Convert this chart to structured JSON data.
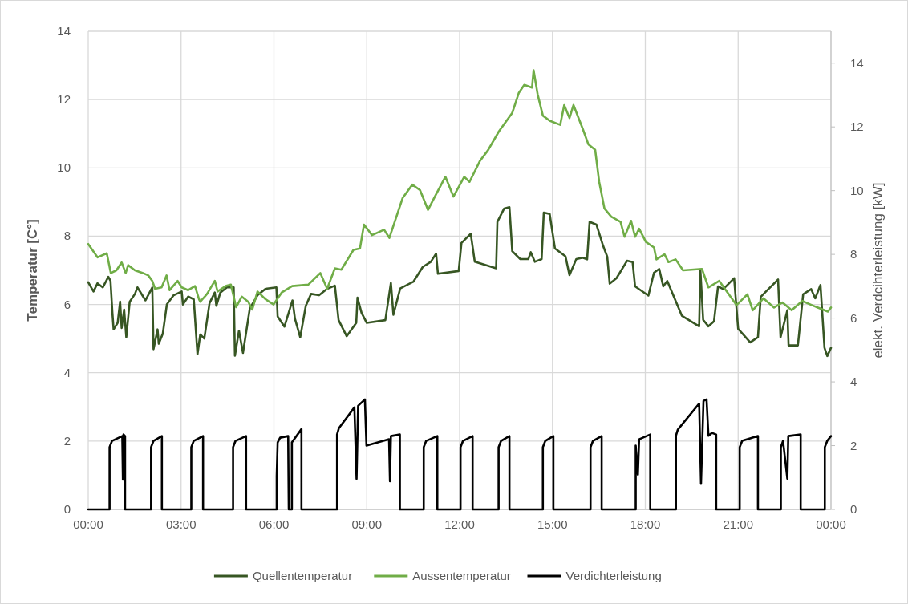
{
  "chart_data": {
    "type": "line",
    "ylabel": "Temperatur [C°]",
    "y2label": "elekt. Verdcihterleistung [kW]",
    "xlim": [
      0,
      24
    ],
    "xticks": [
      {
        "value": 0,
        "label": "00:00"
      },
      {
        "value": 3,
        "label": "03:00"
      },
      {
        "value": 6,
        "label": "06:00"
      },
      {
        "value": 9,
        "label": "09:00"
      },
      {
        "value": 12,
        "label": "12:00"
      },
      {
        "value": 15,
        "label": "15:00"
      },
      {
        "value": 18,
        "label": "18:00"
      },
      {
        "value": 21,
        "label": "21:00"
      },
      {
        "value": 24,
        "label": "00:00"
      }
    ],
    "ylim": [
      0,
      14
    ],
    "yticks": [
      0,
      2,
      4,
      6,
      8,
      10,
      12,
      14
    ],
    "y2lim": [
      0,
      15
    ],
    "y2ticks": [
      0,
      2,
      4,
      6,
      8,
      10,
      12,
      14
    ],
    "grid": true,
    "legend": "bottom",
    "line_style": "solid",
    "series": [
      {
        "name": "Quellentemperatur",
        "color": "#375623",
        "x": [
          0,
          0.17,
          0.3,
          0.47,
          0.65,
          0.72,
          0.78,
          0.82,
          0.95,
          1.03,
          1.08,
          1.16,
          1.23,
          1.34,
          1.51,
          1.59,
          1.85,
          2.07,
          2.11,
          2.24,
          2.28,
          2.41,
          2.54,
          2.76,
          3.02,
          3.06,
          3.23,
          3.41,
          3.53,
          3.62,
          3.75,
          3.92,
          4.09,
          4.14,
          4.27,
          4.48,
          4.7,
          4.74,
          4.87,
          5.0,
          5.22,
          5.47,
          5.73,
          6.08,
          6.12,
          6.34,
          6.6,
          6.68,
          6.85,
          7.03,
          7.2,
          7.46,
          7.72,
          7.97,
          8.09,
          8.35,
          8.66,
          8.7,
          8.83,
          9.0,
          9.6,
          9.78,
          9.86,
          10.08,
          10.51,
          10.81,
          11.07,
          11.24,
          11.3,
          11.97,
          12.06,
          12.36,
          12.49,
          13.18,
          13.22,
          13.44,
          13.61,
          13.7,
          13.96,
          14.22,
          14.3,
          14.43,
          14.65,
          14.72,
          14.91,
          15.08,
          15.42,
          15.55,
          15.77,
          15.98,
          16.12,
          16.2,
          16.42,
          16.64,
          16.77,
          16.85,
          17.07,
          17.41,
          17.59,
          17.67,
          18.1,
          18.28,
          18.45,
          18.58,
          18.71,
          19.18,
          19.74,
          19.78,
          19.87,
          20.04,
          20.22,
          20.35,
          20.52,
          20.87,
          21.0,
          21.39,
          21.64,
          21.73,
          21.9,
          22.29,
          22.37,
          22.59,
          22.63,
          22.93,
          23.1,
          23.36,
          23.49,
          23.66,
          23.79,
          23.88,
          24
        ],
        "values": [
          6.65,
          6.38,
          6.62,
          6.5,
          6.81,
          6.69,
          5.77,
          5.27,
          5.46,
          6.08,
          5.31,
          5.85,
          5.04,
          6.08,
          6.31,
          6.5,
          6.12,
          6.5,
          4.69,
          5.27,
          4.85,
          5.15,
          6.0,
          6.27,
          6.38,
          6.0,
          6.23,
          6.15,
          4.54,
          5.12,
          5.0,
          6.04,
          6.35,
          5.96,
          6.35,
          6.5,
          6.5,
          4.5,
          5.23,
          4.58,
          5.88,
          6.27,
          6.46,
          6.5,
          5.65,
          5.35,
          6.12,
          5.58,
          5.04,
          5.96,
          6.31,
          6.27,
          6.46,
          6.55,
          5.54,
          5.07,
          5.46,
          6.2,
          5.76,
          5.46,
          5.54,
          6.63,
          5.7,
          6.47,
          6.67,
          7.1,
          7.25,
          7.49,
          6.9,
          6.98,
          7.8,
          8.07,
          7.25,
          7.06,
          8.42,
          8.81,
          8.85,
          7.56,
          7.33,
          7.33,
          7.53,
          7.25,
          7.33,
          8.69,
          8.65,
          7.64,
          7.41,
          6.86,
          7.33,
          7.37,
          7.32,
          8.42,
          8.34,
          7.71,
          7.4,
          6.61,
          6.77,
          7.28,
          7.24,
          6.53,
          6.26,
          6.93,
          7.04,
          6.53,
          6.69,
          5.67,
          5.36,
          7.0,
          5.55,
          5.36,
          5.51,
          6.53,
          6.45,
          6.77,
          5.29,
          4.89,
          5.04,
          6.22,
          6.38,
          6.73,
          5.04,
          5.83,
          4.8,
          4.8,
          6.3,
          6.45,
          6.18,
          6.57,
          4.73,
          4.49,
          4.73
        ]
      },
      {
        "name": "Aussentemperatur",
        "color": "#70ad47",
        "x": [
          0,
          0.3,
          0.6,
          0.73,
          0.91,
          1.08,
          1.21,
          1.29,
          1.51,
          1.77,
          1.94,
          2.07,
          2.16,
          2.37,
          2.53,
          2.63,
          2.89,
          3.02,
          3.23,
          3.45,
          3.58,
          3.62,
          3.84,
          4.09,
          4.18,
          4.44,
          4.61,
          4.78,
          4.96,
          5.17,
          5.3,
          5.47,
          5.73,
          5.99,
          6.25,
          6.59,
          7.11,
          7.5,
          7.72,
          7.97,
          8.18,
          8.57,
          8.78,
          8.91,
          9.17,
          9.56,
          9.73,
          10.16,
          10.47,
          10.72,
          10.98,
          11.2,
          11.54,
          11.8,
          12.15,
          12.32,
          12.66,
          12.92,
          13.27,
          13.7,
          13.91,
          14.09,
          14.34,
          14.39,
          14.52,
          14.69,
          14.91,
          15.25,
          15.38,
          15.55,
          15.68,
          15.98,
          16.16,
          16.38,
          16.51,
          16.68,
          16.9,
          17.2,
          17.33,
          17.54,
          17.67,
          17.8,
          18.02,
          18.28,
          18.36,
          18.62,
          18.75,
          18.98,
          19.22,
          19.83,
          20.04,
          20.39,
          20.95,
          21.3,
          21.47,
          21.82,
          22.16,
          22.43,
          22.73,
          23.07,
          23.38,
          23.9,
          24
        ],
        "values": [
          7.77,
          7.38,
          7.5,
          6.92,
          7.0,
          7.23,
          6.92,
          7.15,
          7.0,
          6.92,
          6.85,
          6.69,
          6.46,
          6.5,
          6.85,
          6.42,
          6.69,
          6.5,
          6.42,
          6.54,
          6.15,
          6.08,
          6.31,
          6.69,
          6.38,
          6.54,
          6.58,
          5.92,
          6.23,
          6.08,
          5.85,
          6.38,
          6.15,
          6.0,
          6.35,
          6.54,
          6.58,
          6.92,
          6.46,
          7.06,
          7.02,
          7.6,
          7.64,
          8.34,
          8.03,
          8.19,
          7.95,
          9.12,
          9.51,
          9.35,
          8.77,
          9.16,
          9.74,
          9.16,
          9.74,
          9.59,
          10.21,
          10.52,
          11.07,
          11.61,
          12.19,
          12.43,
          12.35,
          12.86,
          12.16,
          11.53,
          11.38,
          11.26,
          11.84,
          11.46,
          11.84,
          11.14,
          10.69,
          10.53,
          9.59,
          8.81,
          8.57,
          8.42,
          7.98,
          8.45,
          7.98,
          8.22,
          7.83,
          7.67,
          7.32,
          7.47,
          7.24,
          7.32,
          7.0,
          7.04,
          6.5,
          6.69,
          5.98,
          6.3,
          5.83,
          6.18,
          5.91,
          6.06,
          5.83,
          6.1,
          5.98,
          5.79,
          5.91
        ]
      },
      {
        "name": "Verdichterleistung",
        "color": "#000000",
        "axis": "y2",
        "x": [
          0,
          0.69,
          0.69,
          0.77,
          1.1,
          1.12,
          1.14,
          1.19,
          1.19,
          2.03,
          2.03,
          2.11,
          2.38,
          2.38,
          3.33,
          3.33,
          3.41,
          3.71,
          3.71,
          4.68,
          4.68,
          4.76,
          5.1,
          5.1,
          6.09,
          6.09,
          6.12,
          6.2,
          6.46,
          6.48,
          6.58,
          6.58,
          6.89,
          6.89,
          8.04,
          8.04,
          8.1,
          8.6,
          8.67,
          8.72,
          8.94,
          8.99,
          9.72,
          9.75,
          9.78,
          10.07,
          10.07,
          10.84,
          10.84,
          10.92,
          11.28,
          11.28,
          12.03,
          12.03,
          12.11,
          12.42,
          12.42,
          13.26,
          13.26,
          13.34,
          13.61,
          13.61,
          14.69,
          14.69,
          14.77,
          15.03,
          15.03,
          16.23,
          16.23,
          16.31,
          16.59,
          16.59,
          17.69,
          17.69,
          17.76,
          17.8,
          18.16,
          18.16,
          18.99,
          18.99,
          19.05,
          19.74,
          19.8,
          19.88,
          19.98,
          20.04,
          20.15,
          20.29,
          20.29,
          21.05,
          21.05,
          21.13,
          21.64,
          21.64,
          22.38,
          22.38,
          22.45,
          22.59,
          22.62,
          23.02,
          23.02,
          23.8,
          23.8,
          23.88,
          24
        ],
        "values": [
          0,
          0,
          1.95,
          2.15,
          2.3,
          0.93,
          2.35,
          2.3,
          0,
          0,
          1.95,
          2.15,
          2.3,
          0,
          0,
          1.95,
          2.15,
          2.3,
          0,
          0,
          1.95,
          2.15,
          2.3,
          0,
          0,
          1.05,
          2.1,
          2.25,
          2.3,
          0,
          0,
          2.1,
          2.52,
          0,
          0,
          2.35,
          2.55,
          3.2,
          0.96,
          3.25,
          3.45,
          2.0,
          2.2,
          0.88,
          2.3,
          2.35,
          0,
          0,
          1.95,
          2.15,
          2.3,
          0,
          0,
          1.95,
          2.15,
          2.3,
          0,
          0,
          1.95,
          2.15,
          2.3,
          0,
          0,
          1.95,
          2.15,
          2.3,
          0,
          0,
          1.95,
          2.15,
          2.3,
          0,
          0,
          2.0,
          1.09,
          2.2,
          2.35,
          0,
          0,
          2.31,
          2.5,
          3.32,
          0.8,
          3.4,
          3.45,
          2.31,
          2.4,
          2.35,
          0,
          0,
          1.95,
          2.15,
          2.3,
          0,
          0,
          1.95,
          2.15,
          0.96,
          2.3,
          2.35,
          0,
          0,
          1.95,
          2.15,
          2.3
        ]
      }
    ]
  }
}
